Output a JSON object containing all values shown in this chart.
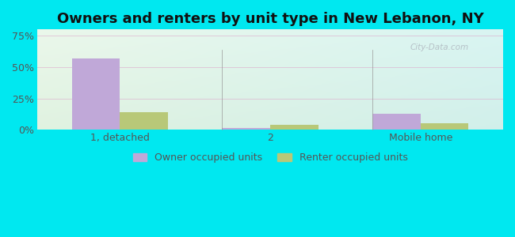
{
  "title": "Owners and renters by unit type in New Lebanon, NY",
  "categories": [
    "1, detached",
    "2",
    "Mobile home"
  ],
  "owner_values": [
    57,
    1.5,
    13
  ],
  "renter_values": [
    14,
    4,
    5
  ],
  "owner_color": "#c0a8d8",
  "renter_color": "#b8c878",
  "yticks": [
    0,
    25,
    50,
    75
  ],
  "ytick_labels": [
    "0%",
    "25%",
    "50%",
    "75%"
  ],
  "ylim": [
    0,
    80
  ],
  "bar_width": 0.32,
  "background_outer": "#00e8f0",
  "grid_color": "#dda0c8",
  "legend_owner": "Owner occupied units",
  "legend_renter": "Renter occupied units",
  "title_fontsize": 13,
  "tick_fontsize": 9,
  "legend_fontsize": 9,
  "watermark": "City-Data.com"
}
